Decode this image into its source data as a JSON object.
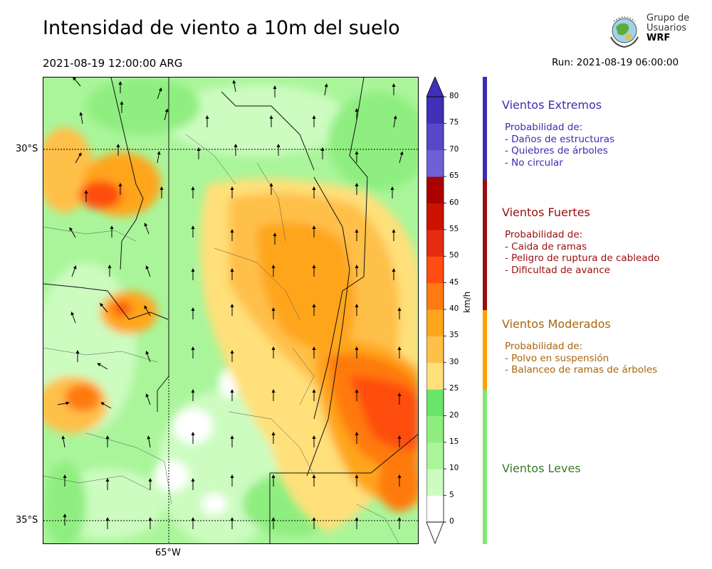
{
  "header": {
    "title": "Intensidad de viento a 10m del suelo",
    "valid_time": "2021-08-19 12:00:00 ARG",
    "run": "Run: 2021-08-19 06:00:00"
  },
  "logo": {
    "line1": "Grupo de",
    "line2": "Usuarios",
    "line3": "WRF"
  },
  "map": {
    "lat_labels": [
      "30°S",
      "35°S"
    ],
    "lon_labels": [
      "65°W"
    ]
  },
  "colorbar": {
    "unit": "km/h",
    "ticks": [
      "0",
      "5",
      "10",
      "15",
      "20",
      "25",
      "30",
      "35",
      "40",
      "45",
      "50",
      "55",
      "60",
      "65",
      "70",
      "75",
      "80"
    ],
    "colors": [
      "#ffffff",
      "#ccfcc0",
      "#aaf59a",
      "#8fee80",
      "#6ae66a",
      "#ffe07a",
      "#ffc04a",
      "#ffa51c",
      "#ff7a10",
      "#ff4d10",
      "#e52b10",
      "#cc1100",
      "#aa0000",
      "#7060d8",
      "#5848c8",
      "#4030b8"
    ]
  },
  "categories": [
    {
      "title": "Vientos Extremos",
      "color": "#3b2db0",
      "lines": [
        "Probabilidad de:",
        "- Daños de estructuras",
        "- Quiebres de árboles",
        "- No circular"
      ]
    },
    {
      "title": "Vientos Fuertes",
      "color": "#9b0d0d",
      "lines": [
        "Probabilidad de:",
        "- Caida de ramas",
        "- Peligro de ruptura de cableado",
        "- Dificultad de avance"
      ]
    },
    {
      "title": "Vientos Moderados",
      "color": "#a8650a",
      "lines": [
        "Probabilidad de:",
        "- Polvo en suspensión",
        "- Balanceo de ramas de árboles"
      ]
    },
    {
      "title": "Vientos Leves",
      "color": "#3a7a2a",
      "lines": []
    }
  ],
  "legend_bar_colors": [
    "#3b2db0",
    "#9b0d0d",
    "#ffa000",
    "#7ee872"
  ]
}
